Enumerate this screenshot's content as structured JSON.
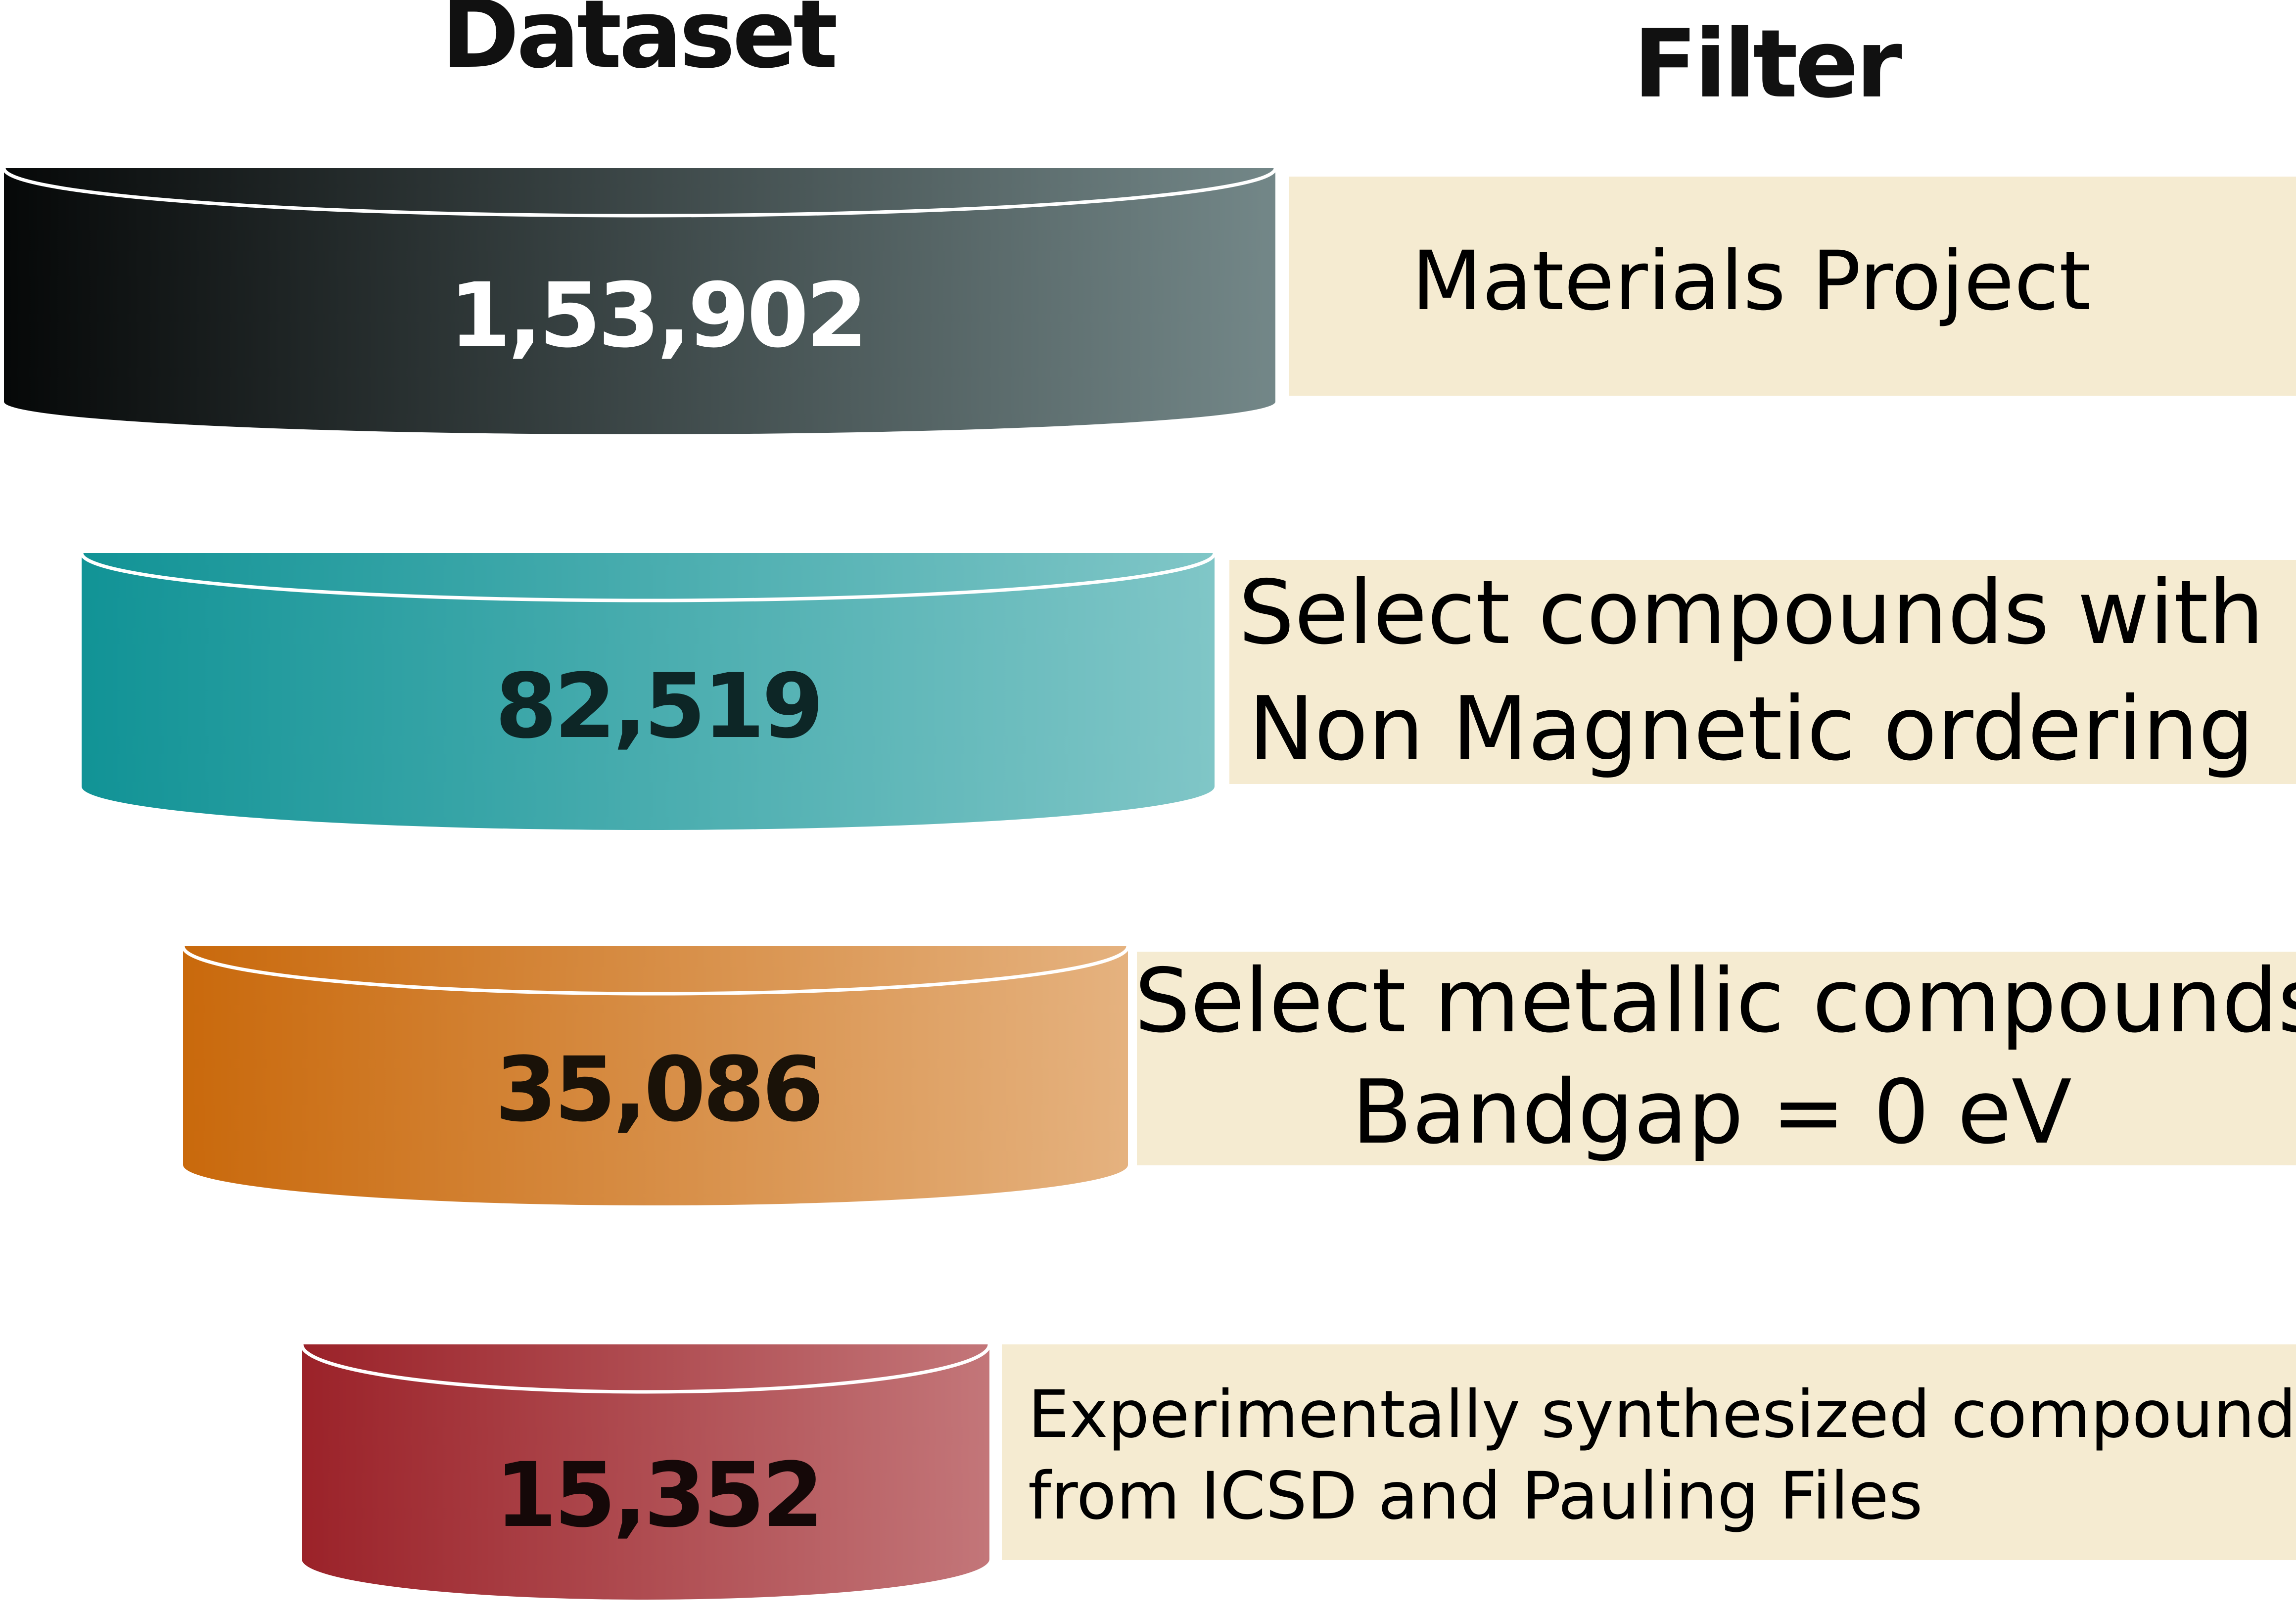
{
  "headers": {
    "dataset": "Dataset",
    "filter": "Filter"
  },
  "tiers": [
    {
      "count": "1,53,902",
      "filter_lines": [
        "Materials Project"
      ],
      "color_dark": "#060808",
      "color_light": "#738788",
      "count_color": "#ffffff"
    },
    {
      "count": "82,519",
      "filter_lines": [
        "Select compounds with",
        "Non Magnetic ordering"
      ],
      "color_dark": "#119396",
      "color_light": "#80c6c7",
      "count_color": "#0d2626"
    },
    {
      "count": "35,086",
      "filter_lines": [
        "Select metallic compounds",
        "Bandgap = 0 eV"
      ],
      "color_dark": "#c9690c",
      "color_light": "#e5b27f",
      "count_color": "#1a1208"
    },
    {
      "count": "15,352",
      "filter_lines": [
        "Experimentally synthesized compounds",
        "from ICSD and Pauling Files"
      ],
      "color_dark": "#9b2229",
      "color_light": "#c37679",
      "count_color": "#150808"
    }
  ],
  "filter_box_color": "#f5ebd1"
}
